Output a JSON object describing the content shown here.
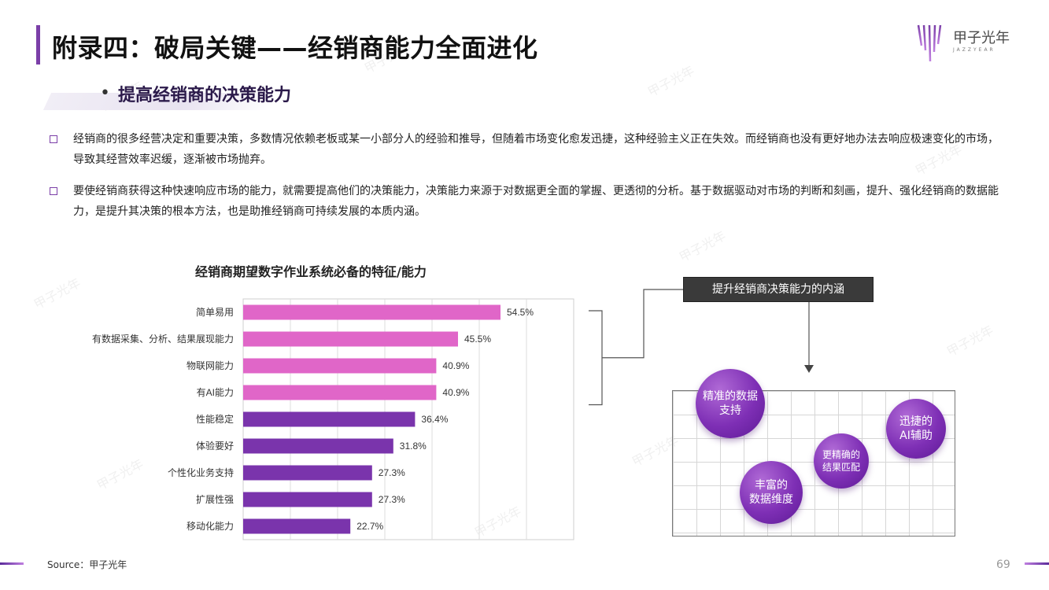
{
  "header": {
    "title": "附录四：破局关键——经销商能力全面进化",
    "logo_name": "甲子光年",
    "logo_sub": "JAZZYEAR"
  },
  "section": {
    "title": "提高经销商的决策能力"
  },
  "paragraphs": [
    "经销商的很多经营决定和重要决策，多数情况依赖老板或某一小部分人的经验和推导，但随着市场变化愈发迅捷，这种经验主义正在失效。而经销商也没有更好地办法去响应极速变化的市场，导致其经营效率迟缓，逐渐被市场抛弃。",
    "要使经销商获得这种快速响应市场的能力，就需要提高他们的决策能力，决策能力来源于对数据更全面的掌握、更透彻的分析。基于数据驱动对市场的判断和刻画，提升、强化经销商的数据能力，是提升其决策的根本方法，也是助推经销商可持续发展的本质内涵。"
  ],
  "chart_data": {
    "type": "bar",
    "orientation": "horizontal",
    "title": "经销商期望数字作业系统必备的特征/能力",
    "categories": [
      "简单易用",
      "有数据采集、分析、结果展现能力",
      "物联网能力",
      "有AI能力",
      "性能稳定",
      "体验要好",
      "个性化业务支持",
      "扩展性强",
      "移动化能力"
    ],
    "values": [
      54.5,
      45.5,
      40.9,
      40.9,
      36.4,
      31.8,
      27.3,
      27.3,
      22.7
    ],
    "value_labels": [
      "54.5%",
      "45.5%",
      "40.9%",
      "40.9%",
      "36.4%",
      "31.8%",
      "27.3%",
      "27.3%",
      "22.7%"
    ],
    "xlim": [
      0,
      70
    ],
    "colors": [
      "#e066c8",
      "#e066c8",
      "#e066c8",
      "#e066c8",
      "#7a34ac",
      "#7a34ac",
      "#7a34ac",
      "#7a34ac",
      "#7a34ac"
    ],
    "grid": true
  },
  "diagram": {
    "box_label": "提升经销商决策能力的内涵",
    "bubbles": [
      "精准的数据\n支持",
      "迅捷的\nAI辅助",
      "更精确的\n结果匹配",
      "丰富的\n数据维度"
    ]
  },
  "footer": {
    "source": "Source：甲子光年",
    "page_number": "69"
  },
  "colors": {
    "accent": "#7b3fa8",
    "bar_pink": "#e066c8",
    "bar_purple": "#7a34ac"
  }
}
